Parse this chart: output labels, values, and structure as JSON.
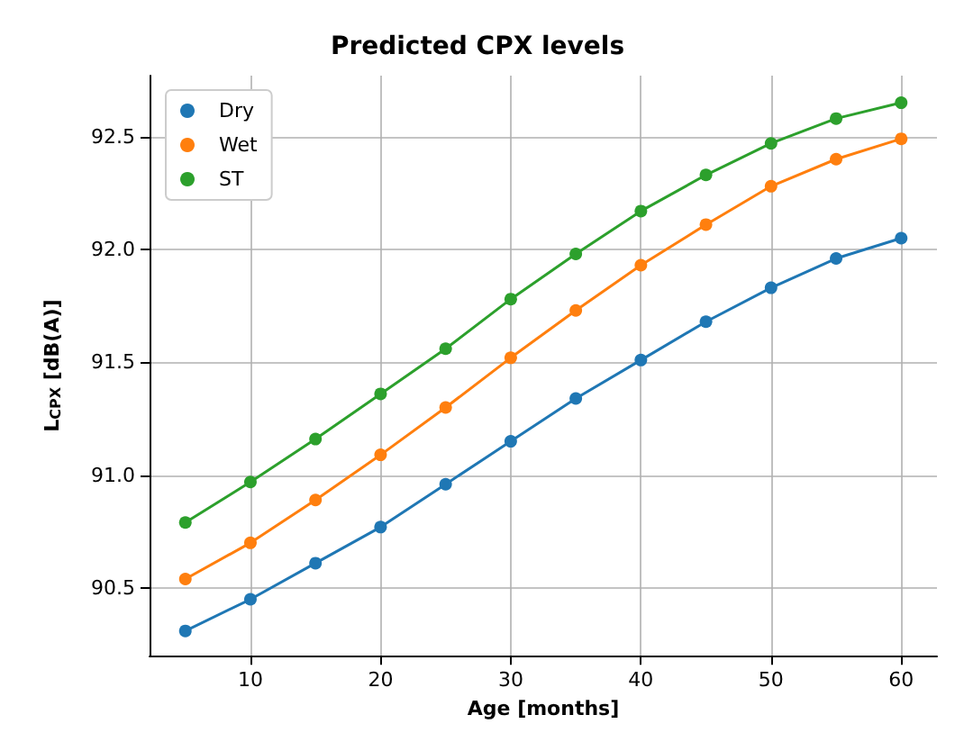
{
  "chart_data": {
    "type": "line",
    "title": "Predicted CPX levels",
    "xlabel": "Age [months]",
    "ylabel": "L$_{CPX}$ [dB(A)]",
    "x": [
      5,
      10,
      15,
      20,
      25,
      30,
      35,
      40,
      45,
      50,
      55,
      60
    ],
    "series": [
      {
        "name": "Dry",
        "color": "#1f77b4",
        "values": [
          90.31,
          90.45,
          90.61,
          90.77,
          90.96,
          91.15,
          91.34,
          91.51,
          91.68,
          91.83,
          91.96,
          92.05
        ]
      },
      {
        "name": "Wet",
        "color": "#ff7f0e",
        "values": [
          90.54,
          90.7,
          90.89,
          91.09,
          91.3,
          91.52,
          91.73,
          91.93,
          92.11,
          92.28,
          92.4,
          92.49
        ]
      },
      {
        "name": "ST",
        "color": "#2ca02c",
        "values": [
          90.79,
          90.97,
          91.16,
          91.36,
          91.56,
          91.78,
          91.98,
          92.17,
          92.33,
          92.47,
          92.58,
          92.65
        ]
      }
    ],
    "xlim": [
      2.25,
      62.75
    ],
    "xticks": [
      10,
      20,
      30,
      40,
      50,
      60
    ],
    "ylim": [
      90.2,
      92.77
    ],
    "yticks": [
      {
        "value": 90.5,
        "label": "90.5"
      },
      {
        "value": 91,
        "label": "91.0"
      },
      {
        "value": 91.5,
        "label": "91.5"
      },
      {
        "value": 92,
        "label": "92.0"
      },
      {
        "value": 92.5,
        "label": "92.5"
      }
    ],
    "grid": true,
    "legend": "top left",
    "marker": "circle",
    "line_style": "solid"
  }
}
